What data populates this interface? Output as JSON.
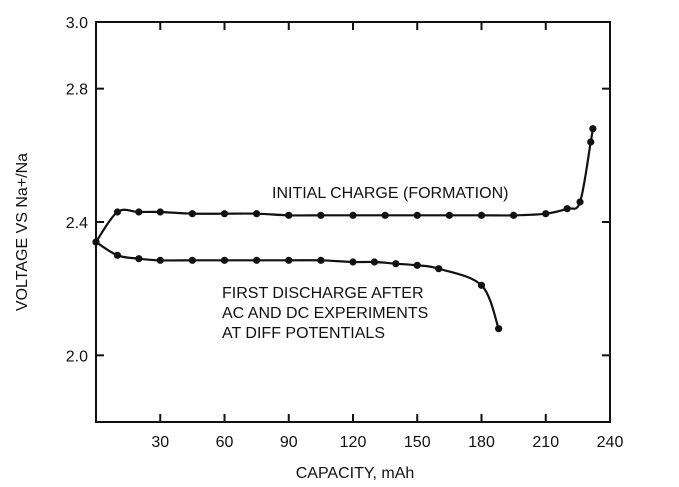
{
  "chart_data": {
    "type": "line",
    "title": "",
    "xlabel": "CAPACITY, mAh",
    "ylabel": "VOLTAGE VS Na+/Na",
    "xlim": [
      0,
      240
    ],
    "ylim": [
      1.8,
      3.0
    ],
    "x_ticks": [
      30,
      60,
      90,
      120,
      150,
      180,
      210,
      240
    ],
    "x_tick_labels": [
      "30",
      "60",
      "90",
      "120",
      "150",
      "180",
      "210",
      "240"
    ],
    "y_ticks": [
      2.0,
      2.4,
      2.8,
      3.0
    ],
    "y_tick_labels": [
      "2.0",
      "2.4",
      "2.8",
      "3.0"
    ],
    "grid": false,
    "legend": "none",
    "series": [
      {
        "name": "INITIAL CHARGE (FORMATION)",
        "color": "#111111",
        "x": [
          0,
          10,
          20,
          30,
          45,
          60,
          75,
          90,
          105,
          120,
          135,
          150,
          165,
          180,
          195,
          210,
          220,
          226,
          231,
          232
        ],
        "y": [
          2.34,
          2.43,
          2.43,
          2.43,
          2.425,
          2.425,
          2.425,
          2.42,
          2.42,
          2.42,
          2.42,
          2.42,
          2.42,
          2.42,
          2.42,
          2.425,
          2.44,
          2.46,
          2.64,
          2.68
        ]
      },
      {
        "name": "FIRST DISCHARGE AFTER AC AND DC EXPERIMENTS AT DIFF POTENTIALS",
        "color": "#111111",
        "x": [
          0,
          10,
          20,
          30,
          45,
          60,
          75,
          90,
          105,
          120,
          130,
          140,
          150,
          160,
          180,
          188
        ],
        "y": [
          2.34,
          2.3,
          2.29,
          2.285,
          2.285,
          2.285,
          2.285,
          2.285,
          2.285,
          2.28,
          2.28,
          2.275,
          2.27,
          2.26,
          2.21,
          2.08
        ]
      }
    ],
    "annotations": [
      "INITIAL CHARGE (FORMATION)",
      "FIRST DISCHARGE AFTER",
      "AC AND DC EXPERIMENTS",
      "AT DIFF POTENTIALS"
    ]
  }
}
